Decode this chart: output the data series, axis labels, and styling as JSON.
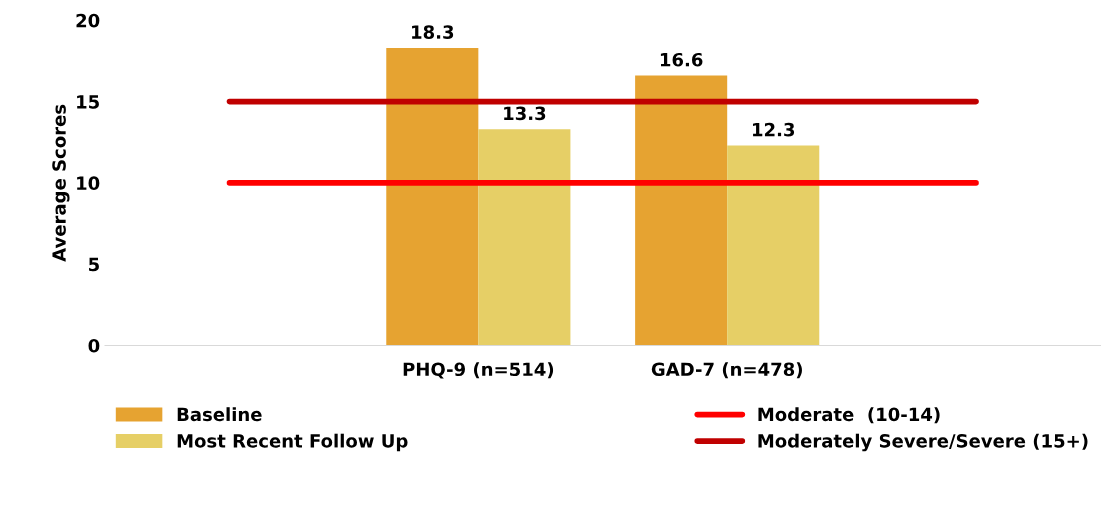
{
  "chart_data": {
    "type": "bar",
    "ylabel": "Average Scores",
    "categories": [
      null,
      "PHQ-9 (n=514)",
      "GAD-7 (n=478)",
      null
    ],
    "series": [
      {
        "name": "Baseline",
        "color": "#e6a331",
        "values": [
          null,
          18.3,
          16.6,
          null
        ],
        "value_labels": [
          null,
          "18.3",
          "16.6",
          null
        ]
      },
      {
        "name": "Most Recent Follow Up",
        "color": "#e6cf66",
        "values": [
          null,
          13.3,
          12.3,
          null
        ],
        "value_labels": [
          null,
          "13.3",
          "12.3",
          null
        ]
      },
      {
        "name": "Moderate  (10-14)",
        "type": "line",
        "color": "#ff0000",
        "values": [
          10,
          10,
          10,
          10
        ]
      },
      {
        "name": "Moderately Severe/Severe (15+)",
        "type": "line",
        "color": "#c00000",
        "values": [
          15,
          15,
          15,
          15
        ]
      }
    ],
    "ylim": [
      0,
      20
    ],
    "yticks": [
      0,
      5,
      10,
      15,
      20
    ],
    "grid": false,
    "legend": "bottom",
    "marker": "none"
  }
}
